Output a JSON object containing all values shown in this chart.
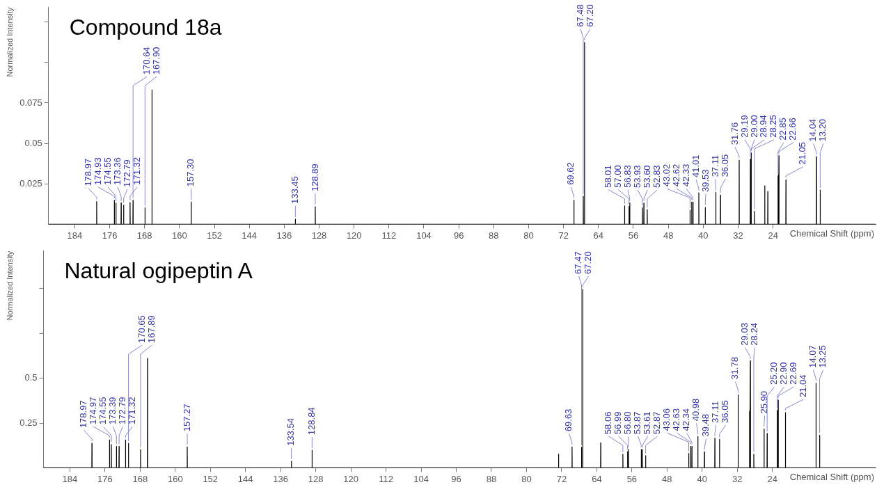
{
  "chart_data": [
    {
      "type": "line",
      "title": "Compound 18a",
      "xlabel": "Chemical Shift (ppm)",
      "ylabel": "Normalized Intensity",
      "marker": "none",
      "line_style": "solid",
      "xlim": [
        190,
        0.5
      ],
      "xticks": [
        184,
        176,
        168,
        160,
        152,
        144,
        136,
        128,
        120,
        112,
        104,
        96,
        88,
        80,
        72,
        64,
        56,
        48,
        40,
        32,
        24
      ],
      "ylim": [
        0,
        0.134
      ],
      "yticks": [
        0.025,
        0.05,
        0.075,
        {
          "value": 0.1,
          "label": null
        },
        {
          "value": 0.125,
          "label": null
        }
      ],
      "series": [
        {
          "color": "#000000",
          "x": [
            190,
            179.0,
            178.97,
            178.94,
            174.96,
            174.93,
            174.9,
            174.58,
            174.55,
            174.52,
            173.39,
            173.36,
            173.33,
            172.82,
            172.79,
            172.76,
            171.35,
            171.32,
            171.29,
            170.67,
            170.64,
            170.61,
            167.93,
            167.9,
            167.87,
            166.33,
            166.3,
            166.27,
            157.33,
            157.3,
            157.27,
            133.48,
            133.45,
            133.42,
            128.92,
            128.89,
            128.86,
            69.65,
            69.62,
            69.59,
            67.51,
            67.48,
            67.45,
            67.23,
            67.2,
            67.17,
            58.04,
            58.01,
            57.98,
            57.03,
            57.0,
            56.97,
            56.86,
            56.83,
            56.8,
            53.96,
            53.93,
            53.9,
            53.63,
            53.6,
            53.57,
            52.86,
            52.83,
            52.8,
            43.05,
            43.02,
            42.99,
            42.65,
            42.62,
            42.59,
            42.36,
            42.33,
            42.3,
            41.04,
            41.01,
            40.98,
            39.56,
            39.53,
            39.5,
            37.14,
            37.11,
            37.08,
            36.08,
            36.05,
            36.02,
            31.79,
            31.76,
            31.73,
            29.22,
            29.19,
            29.16,
            29.03,
            29.0,
            28.98,
            28.28,
            28.25,
            28.22,
            25.93,
            25.9,
            25.87,
            25.23,
            25.2,
            25.17,
            22.88,
            22.85,
            22.82,
            22.69,
            22.66,
            22.63,
            21.08,
            21.05,
            21.02,
            14.07,
            14.04,
            14.01,
            13.23,
            13.2,
            13.17,
            0.5
          ],
          "values": [
            0,
            0,
            0.0141,
            0,
            0,
            0.0148,
            0,
            0,
            0.0131,
            0,
            0,
            0.0132,
            0,
            0,
            0.0119,
            0,
            0,
            0.0135,
            0,
            0,
            0.0149,
            0,
            0,
            0.0102,
            0,
            0,
            0.0831,
            0,
            0,
            0.0138,
            0,
            0,
            0.0032,
            0,
            0,
            0.0109,
            0,
            0,
            0.0149,
            0,
            0,
            0.0174,
            0,
            0,
            0.1125,
            0,
            0,
            0.0114,
            0,
            0,
            0.011,
            0,
            0,
            0.0132,
            0,
            0,
            0.0102,
            0,
            0,
            0.0131,
            0,
            0,
            0.0091,
            0,
            0,
            0.0088,
            0,
            0,
            0.0138,
            0,
            0,
            0.0138,
            0,
            0,
            0.0195,
            0,
            0,
            0.0105,
            0,
            0,
            0.0198,
            0,
            0,
            0.0181,
            0,
            0,
            0.0396,
            0,
            0,
            0.0402,
            0,
            0,
            0.0441,
            0,
            0,
            0.0081,
            0,
            0,
            0.0238,
            0,
            0,
            0.0202,
            0,
            0,
            0.03,
            0,
            0,
            0.0424,
            0,
            0,
            0.0274,
            0,
            0,
            0.0417,
            0,
            0,
            0.0212,
            0,
            0
          ]
        }
      ],
      "annotations": [
        {
          "text": "178.97",
          "x": 178.97,
          "y": 0.0141
        },
        {
          "text": "174.93",
          "x": 174.93,
          "y": 0.0148
        },
        {
          "text": "174.55",
          "x": 174.55,
          "y": 0.0131
        },
        {
          "text": "173.36",
          "x": 173.36,
          "y": 0.0132
        },
        {
          "text": "172.79",
          "x": 172.79,
          "y": 0.0119
        },
        {
          "text": "171.32",
          "x": 171.32,
          "y": 0.0135
        },
        {
          "text": "170.64",
          "x": 170.64,
          "y": 0.0149
        },
        {
          "text": "167.90",
          "x": 167.9,
          "y": 0.0102
        },
        {
          "text": "157.30",
          "x": 157.3,
          "y": 0.0138
        },
        {
          "text": "133.45",
          "x": 133.45,
          "y": 0.0032
        },
        {
          "text": "128.89",
          "x": 128.89,
          "y": 0.0109
        },
        {
          "text": "69.62",
          "x": 69.62,
          "y": 0.0149
        },
        {
          "text": "67.48",
          "x": 67.48,
          "y": 0.0174
        },
        {
          "text": "67.20",
          "x": 67.2,
          "y": 0.1125
        },
        {
          "text": "58.01",
          "x": 58.01,
          "y": 0.0114
        },
        {
          "text": "57.00",
          "x": 57.0,
          "y": 0.011
        },
        {
          "text": "56.83",
          "x": 56.83,
          "y": 0.0132
        },
        {
          "text": "53.93",
          "x": 53.93,
          "y": 0.0102
        },
        {
          "text": "53.60",
          "x": 53.6,
          "y": 0.0131
        },
        {
          "text": "52.83",
          "x": 52.83,
          "y": 0.0091
        },
        {
          "text": "43.02",
          "x": 43.02,
          "y": 0.0088
        },
        {
          "text": "42.62",
          "x": 42.62,
          "y": 0.0138
        },
        {
          "text": "42.33",
          "x": 42.33,
          "y": 0.0138
        },
        {
          "text": "41.01",
          "x": 41.01,
          "y": 0.0195
        },
        {
          "text": "39.53",
          "x": 39.53,
          "y": 0.0105
        },
        {
          "text": "37.11",
          "x": 37.11,
          "y": 0.0198
        },
        {
          "text": "36.05",
          "x": 36.05,
          "y": 0.0181
        },
        {
          "text": "31.76",
          "x": 31.76,
          "y": 0.0396
        },
        {
          "text": "29.19",
          "x": 29.19,
          "y": 0.0402
        },
        {
          "text": "29.00",
          "x": 29.0,
          "y": 0.0441
        },
        {
          "text": "28.94",
          "x": 28.94,
          "y": 0.0441
        },
        {
          "text": "28.25",
          "x": 28.25,
          "y": 0.0081
        },
        {
          "text": "22.85",
          "x": 22.85,
          "y": 0.03
        },
        {
          "text": "22.66",
          "x": 22.66,
          "y": 0.0424
        },
        {
          "text": "21.05",
          "x": 21.05,
          "y": 0.0274
        },
        {
          "text": "14.04",
          "x": 14.04,
          "y": 0.0417
        },
        {
          "text": "13.20",
          "x": 13.2,
          "y": 0.0212
        }
      ]
    },
    {
      "type": "line",
      "title": "Natural ogipeptin A",
      "xlabel": "Chemical Shift (ppm)",
      "ylabel": "Normalized Intensity",
      "marker": "none",
      "line_style": "solid",
      "xlim": [
        190,
        0.5
      ],
      "xticks": [
        184,
        176,
        168,
        160,
        152,
        144,
        136,
        128,
        120,
        112,
        104,
        96,
        88,
        80,
        72,
        64,
        56,
        48,
        40,
        32,
        24
      ],
      "ylim": [
        0,
        1.21
      ],
      "yticks": [
        0.25,
        0.5,
        {
          "value": 0.75,
          "label": null
        },
        {
          "value": 1.0,
          "label": null
        }
      ],
      "series": [
        {
          "color": "#000000",
          "x": [
            190,
            179.0,
            178.97,
            178.94,
            175.0,
            174.97,
            174.94,
            174.58,
            174.55,
            174.52,
            173.42,
            173.39,
            173.36,
            172.82,
            172.79,
            172.76,
            171.35,
            171.32,
            171.29,
            170.68,
            170.65,
            170.62,
            167.92,
            167.89,
            167.86,
            166.33,
            166.3,
            166.27,
            157.3,
            157.27,
            157.24,
            133.57,
            133.54,
            133.51,
            128.87,
            128.84,
            128.81,
            72.73,
            72.7,
            72.67,
            69.66,
            69.63,
            69.6,
            67.5,
            67.47,
            67.44,
            67.23,
            67.2,
            67.17,
            63.13,
            63.1,
            63.07,
            58.09,
            58.06,
            58.03,
            57.02,
            56.99,
            56.96,
            56.83,
            56.8,
            56.77,
            53.9,
            53.87,
            53.84,
            53.64,
            53.61,
            53.58,
            52.9,
            52.87,
            52.84,
            43.09,
            43.06,
            43.03,
            42.66,
            42.63,
            42.6,
            42.37,
            42.34,
            42.31,
            41.01,
            40.98,
            40.95,
            39.51,
            39.48,
            39.45,
            37.14,
            37.11,
            37.08,
            36.08,
            36.05,
            36.02,
            31.81,
            31.78,
            31.75,
            29.23,
            29.2,
            29.17,
            29.06,
            29.03,
            29.0,
            28.27,
            28.24,
            28.21,
            25.93,
            25.9,
            25.87,
            25.23,
            25.2,
            25.17,
            22.93,
            22.9,
            22.87,
            22.72,
            22.69,
            22.66,
            21.07,
            21.04,
            21.01,
            14.1,
            14.07,
            14.04,
            13.28,
            13.25,
            13.22,
            0.5
          ],
          "values": [
            0,
            0,
            0.137,
            0,
            0,
            0.156,
            0,
            0,
            0.13,
            0,
            0,
            0.12,
            0,
            0,
            0.12,
            0,
            0,
            0.156,
            0,
            0,
            0.137,
            0,
            0,
            0.102,
            0,
            0,
            0.611,
            0,
            0,
            0.117,
            0,
            0,
            0.037,
            0,
            0,
            0.098,
            0,
            0,
            0.076,
            0,
            0,
            0.117,
            0,
            0,
            0.115,
            0,
            0,
            0.996,
            0,
            0,
            0.139,
            0,
            0,
            0.076,
            0,
            0,
            0.09,
            0,
            0,
            0.102,
            0,
            0,
            0.102,
            0,
            0,
            0.102,
            0,
            0,
            0.068,
            0,
            0,
            0.081,
            0,
            0,
            0.12,
            0,
            0,
            0.12,
            0,
            0,
            0.175,
            0,
            0,
            0.089,
            0,
            0,
            0.165,
            0,
            0,
            0.159,
            0,
            0,
            0.407,
            0,
            0,
            0.317,
            0,
            0,
            0.597,
            0,
            0,
            0.076,
            0,
            0,
            0.217,
            0,
            0,
            0.191,
            0,
            0,
            0.321,
            0,
            0,
            0.378,
            0,
            0,
            0.308,
            0,
            0,
            0.472,
            0,
            0,
            0.182,
            0,
            0
          ]
        }
      ],
      "annotations": [
        {
          "text": "178.97",
          "x": 178.97,
          "y": 0.137
        },
        {
          "text": "174.97",
          "x": 174.97,
          "y": 0.156
        },
        {
          "text": "174.55",
          "x": 174.55,
          "y": 0.13
        },
        {
          "text": "173.39",
          "x": 173.39,
          "y": 0.12
        },
        {
          "text": "172.79",
          "x": 172.79,
          "y": 0.12
        },
        {
          "text": "171.32",
          "x": 171.32,
          "y": 0.156
        },
        {
          "text": "170.65",
          "x": 170.65,
          "y": 0.137
        },
        {
          "text": "167.89",
          "x": 167.89,
          "y": 0.102
        },
        {
          "text": "157.27",
          "x": 157.27,
          "y": 0.117
        },
        {
          "text": "133.54",
          "x": 133.54,
          "y": 0.037
        },
        {
          "text": "128.84",
          "x": 128.84,
          "y": 0.098
        },
        {
          "text": "69.63",
          "x": 69.63,
          "y": 0.117
        },
        {
          "text": "67.47",
          "x": 67.47,
          "y": 0.115
        },
        {
          "text": "67.20",
          "x": 67.2,
          "y": 0.996
        },
        {
          "text": "58.06",
          "x": 58.06,
          "y": 0.076
        },
        {
          "text": "56.99",
          "x": 56.99,
          "y": 0.09
        },
        {
          "text": "56.80",
          "x": 56.8,
          "y": 0.102
        },
        {
          "text": "53.87",
          "x": 53.87,
          "y": 0.102
        },
        {
          "text": "53.61",
          "x": 53.61,
          "y": 0.102
        },
        {
          "text": "52.87",
          "x": 52.87,
          "y": 0.068
        },
        {
          "text": "43.06",
          "x": 43.06,
          "y": 0.081
        },
        {
          "text": "42.63",
          "x": 42.63,
          "y": 0.12
        },
        {
          "text": "42.34",
          "x": 42.34,
          "y": 0.12
        },
        {
          "text": "40.98",
          "x": 40.98,
          "y": 0.175
        },
        {
          "text": "39.48",
          "x": 39.48,
          "y": 0.089
        },
        {
          "text": "37.11",
          "x": 37.11,
          "y": 0.165
        },
        {
          "text": "36.05",
          "x": 36.05,
          "y": 0.159
        },
        {
          "text": "31.78",
          "x": 31.78,
          "y": 0.407
        },
        {
          "text": "29.03",
          "x": 29.03,
          "y": 0.597
        },
        {
          "text": "28.24",
          "x": 28.24,
          "y": 0.076
        },
        {
          "text": "25.90",
          "x": 25.9,
          "y": 0.217
        },
        {
          "text": "25.20",
          "x": 25.2,
          "y": 0.191
        },
        {
          "text": "22.90",
          "x": 22.9,
          "y": 0.321
        },
        {
          "text": "22.69",
          "x": 22.69,
          "y": 0.378
        },
        {
          "text": "21.04",
          "x": 21.04,
          "y": 0.308
        },
        {
          "text": "14.07",
          "x": 14.07,
          "y": 0.472
        },
        {
          "text": "13.25",
          "x": 13.25,
          "y": 0.182
        }
      ]
    }
  ]
}
